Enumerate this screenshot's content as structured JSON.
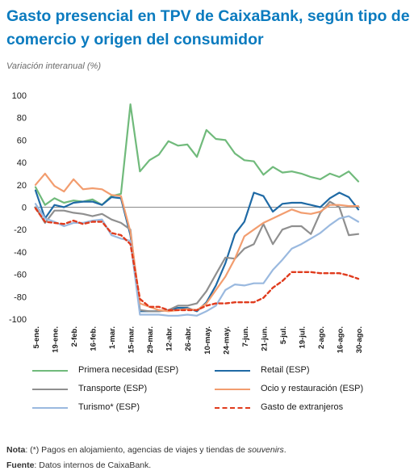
{
  "title": "Gasto presencial en TPV de CaixaBank, según tipo de comercio y origen del consumidor",
  "subtitle": "Variación interanual (%)",
  "notes": {
    "nota_label": "Nota",
    "nota_text": ": (*) Pagos en alojamiento, agencias de viajes y tiendas de ",
    "nota_italic": "souvenirs",
    "nota_end": ".",
    "fuente_label": "Fuente",
    "fuente_text": ": Datos internos de CaixaBank."
  },
  "chart_data": {
    "type": "line",
    "title": "Gasto presencial en TPV de CaixaBank, según tipo de comercio y origen del consumidor",
    "ylabel": "Variación interanual (%)",
    "ylim": [
      -100,
      100
    ],
    "yticks": [
      100,
      80,
      60,
      40,
      20,
      0,
      -20,
      -40,
      -60,
      -80,
      -100
    ],
    "grid": false,
    "legend_position": "bottom",
    "xtick_labels": [
      "5-ene.",
      "19-ene.",
      "2-feb.",
      "16-feb.",
      "1-mar.",
      "15-mar.",
      "29-mar.",
      "12-abr.",
      "26-abr.",
      "10-may.",
      "24-may.",
      "7-jun.",
      "21-jun.",
      "5-jul.",
      "19-jul.",
      "2-ago.",
      "16-ago.",
      "30-ago."
    ],
    "x": [
      "5-ene.",
      "12-ene.",
      "19-ene.",
      "26-ene.",
      "2-feb.",
      "9-feb.",
      "16-feb.",
      "23-feb.",
      "1-mar.",
      "8-mar.",
      "15-mar.",
      "22-mar.",
      "29-mar.",
      "5-abr.",
      "12-abr.",
      "19-abr.",
      "26-abr.",
      "3-may.",
      "10-may.",
      "17-may.",
      "24-may.",
      "31-may.",
      "7-jun.",
      "14-jun.",
      "21-jun.",
      "28-jun.",
      "5-jul.",
      "12-jul.",
      "19-jul.",
      "26-jul.",
      "2-ago.",
      "9-ago.",
      "16-ago.",
      "23-ago.",
      "30-ago."
    ],
    "series": [
      {
        "name": "Primera necesidad (ESP)",
        "color": "#70ba7b",
        "dash": "none",
        "width": 2.2,
        "values": [
          18,
          2,
          8,
          4,
          6,
          5,
          7,
          2,
          10,
          12,
          92,
          32,
          42,
          47,
          59,
          55,
          56,
          45,
          69,
          61,
          60,
          48,
          42,
          41,
          29,
          36,
          31,
          32,
          30,
          27,
          25,
          30,
          27,
          32,
          23
        ]
      },
      {
        "name": "Retail (ESP)",
        "color": "#1f6aa5",
        "dash": "none",
        "width": 2.2,
        "values": [
          15,
          -10,
          2,
          0,
          4,
          5,
          5,
          2,
          9,
          8,
          -25,
          -93,
          -93,
          -93,
          -92,
          -90,
          -90,
          -93,
          -85,
          -70,
          -50,
          -24,
          -13,
          13,
          10,
          -4,
          3,
          4,
          4,
          2,
          0,
          8,
          13,
          9,
          -2
        ]
      },
      {
        "name": "Transporte (ESP)",
        "color": "#8f8f8f",
        "dash": "none",
        "width": 2.2,
        "values": [
          0,
          -14,
          -3,
          -3,
          -5,
          -6,
          -8,
          -6,
          -11,
          -14,
          -20,
          -92,
          -93,
          -93,
          -92,
          -88,
          -88,
          -86,
          -75,
          -60,
          -45,
          -46,
          -37,
          -33,
          -15,
          -33,
          -20,
          -17,
          -17,
          -24,
          -5,
          5,
          0,
          -25,
          -24
        ]
      },
      {
        "name": "Ocio y restauración (ESP)",
        "color": "#f29d6f",
        "dash": "none",
        "width": 2.2,
        "values": [
          20,
          30,
          19,
          14,
          25,
          16,
          17,
          16,
          11,
          10,
          -22,
          -86,
          -89,
          -92,
          -93,
          -92,
          -91,
          -92,
          -86,
          -74,
          -62,
          -46,
          -26,
          -20,
          -14,
          -10,
          -6,
          -2,
          -5,
          -6,
          -4,
          2,
          2,
          1,
          1
        ]
      },
      {
        "name": "Turismo* (ESP)",
        "color": "#9ab9df",
        "dash": "none",
        "width": 2.2,
        "values": [
          3,
          -10,
          -13,
          -17,
          -14,
          -14,
          -12,
          -11,
          -25,
          -28,
          -30,
          -96,
          -96,
          -96,
          -97,
          -97,
          -96,
          -97,
          -93,
          -88,
          -74,
          -69,
          -70,
          -68,
          -68,
          -56,
          -47,
          -37,
          -33,
          -28,
          -23,
          -16,
          -10,
          -8,
          -13
        ]
      },
      {
        "name": "Gasto de extranjeros",
        "color": "#e03b1d",
        "dash": "4.5,3.5",
        "width": 2.4,
        "values": [
          -1,
          -13,
          -14,
          -15,
          -12,
          -15,
          -13,
          -13,
          -23,
          -25,
          -33,
          -82,
          -89,
          -89,
          -92,
          -92,
          -92,
          -92,
          -88,
          -86,
          -86,
          -85,
          -85,
          -85,
          -81,
          -72,
          -66,
          -58,
          -58,
          -58,
          -59,
          -59,
          -59,
          -61,
          -64
        ]
      }
    ]
  }
}
